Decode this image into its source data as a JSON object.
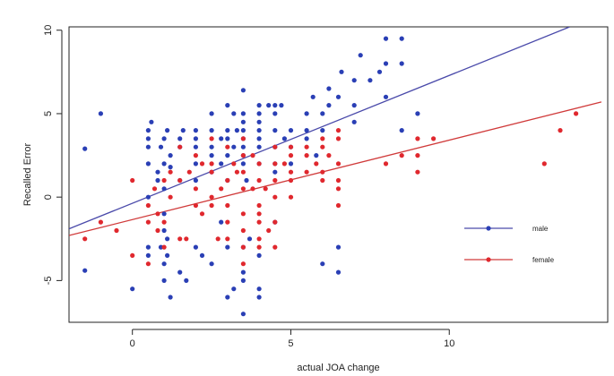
{
  "chart_data": {
    "type": "scatter",
    "title": "",
    "xlabel": "actual JOA change",
    "ylabel": "Recalled Error",
    "xlim": [
      -2,
      15
    ],
    "ylim": [
      -7.5,
      10.2
    ],
    "x_ticks": [
      "0",
      "5",
      "10"
    ],
    "x_tick_values": [
      0,
      5,
      10
    ],
    "y_ticks": [
      "-5",
      "0",
      "5",
      "10"
    ],
    "y_tick_values": [
      -5,
      0,
      5,
      10
    ],
    "grid": false,
    "legend": {
      "placement": "right-lower",
      "entries": [
        "male",
        "female"
      ]
    },
    "colors": {
      "male": "#2a3fb5",
      "female": "#e0282e",
      "male_line": "#4a4aaa",
      "female_line": "#d03a3a"
    },
    "series": [
      {
        "name": "male",
        "trendline": [
          [
            -2,
            -1.9
          ],
          [
            13.8,
            10.2
          ]
        ],
        "points": [
          [
            -1.5,
            2.9
          ],
          [
            -1.0,
            5.0
          ],
          [
            -1.5,
            -4.4
          ],
          [
            0.0,
            -5.5
          ],
          [
            0.5,
            0.0
          ],
          [
            0.5,
            -3.0
          ],
          [
            0.5,
            -3.5
          ],
          [
            0.5,
            2.0
          ],
          [
            0.5,
            3.0
          ],
          [
            0.5,
            3.5
          ],
          [
            0.5,
            4.0
          ],
          [
            0.6,
            4.5
          ],
          [
            0.8,
            1.0
          ],
          [
            0.8,
            1.5
          ],
          [
            0.9,
            -3.0
          ],
          [
            0.9,
            3.0
          ],
          [
            1.0,
            -1.0
          ],
          [
            1.0,
            -2.0
          ],
          [
            1.0,
            -4.0
          ],
          [
            1.0,
            -5.0
          ],
          [
            1.0,
            0.5
          ],
          [
            1.0,
            2.0
          ],
          [
            1.0,
            3.5
          ],
          [
            1.1,
            4.0
          ],
          [
            1.1,
            -2.5
          ],
          [
            1.1,
            -3.5
          ],
          [
            1.2,
            -6.0
          ],
          [
            1.2,
            1.8
          ],
          [
            1.2,
            2.5
          ],
          [
            1.5,
            3.0
          ],
          [
            1.5,
            3.5
          ],
          [
            1.5,
            1.0
          ],
          [
            1.5,
            -4.5
          ],
          [
            1.6,
            4.0
          ],
          [
            1.7,
            -5.0
          ],
          [
            2.0,
            2.0
          ],
          [
            2.0,
            3.0
          ],
          [
            2.0,
            4.0
          ],
          [
            2.0,
            3.5
          ],
          [
            2.0,
            1.0
          ],
          [
            2.0,
            -3.0
          ],
          [
            2.2,
            -3.5
          ],
          [
            2.5,
            4.0
          ],
          [
            2.5,
            3.0
          ],
          [
            2.5,
            5.0
          ],
          [
            2.5,
            2.5
          ],
          [
            2.5,
            1.5
          ],
          [
            2.5,
            -4.0
          ],
          [
            2.8,
            3.5
          ],
          [
            2.8,
            2.0
          ],
          [
            2.8,
            -1.5
          ],
          [
            3.0,
            4.0
          ],
          [
            3.0,
            5.5
          ],
          [
            3.0,
            3.5
          ],
          [
            3.0,
            2.5
          ],
          [
            3.0,
            1.0
          ],
          [
            3.0,
            -3.0
          ],
          [
            3.0,
            -6.0
          ],
          [
            3.2,
            3.0
          ],
          [
            3.2,
            5.0
          ],
          [
            3.2,
            -5.5
          ],
          [
            3.3,
            4.0
          ],
          [
            3.5,
            6.4
          ],
          [
            3.5,
            5.0
          ],
          [
            3.5,
            4.5
          ],
          [
            3.5,
            4.0
          ],
          [
            3.5,
            3.5
          ],
          [
            3.5,
            3.0
          ],
          [
            3.5,
            2.5
          ],
          [
            3.5,
            2.0
          ],
          [
            3.5,
            -3.0
          ],
          [
            3.5,
            -4.5
          ],
          [
            3.5,
            -5.0
          ],
          [
            3.5,
            -7.0
          ],
          [
            3.6,
            1.0
          ],
          [
            3.7,
            -2.5
          ],
          [
            4.0,
            5.5
          ],
          [
            4.0,
            5.0
          ],
          [
            4.0,
            4.5
          ],
          [
            4.0,
            4.0
          ],
          [
            4.0,
            3.5
          ],
          [
            4.0,
            3.0
          ],
          [
            4.0,
            2.0
          ],
          [
            4.0,
            -3.5
          ],
          [
            4.0,
            -5.5
          ],
          [
            4.0,
            -6.0
          ],
          [
            4.3,
            5.5
          ],
          [
            4.5,
            5.5
          ],
          [
            4.5,
            5.0
          ],
          [
            4.5,
            4.0
          ],
          [
            4.5,
            3.0
          ],
          [
            4.5,
            2.0
          ],
          [
            4.5,
            1.5
          ],
          [
            4.5,
            -1.5
          ],
          [
            4.7,
            5.5
          ],
          [
            4.8,
            3.5
          ],
          [
            5.0,
            4.0
          ],
          [
            5.0,
            3.0
          ],
          [
            5.0,
            2.0
          ],
          [
            5.5,
            5.0
          ],
          [
            5.5,
            3.5
          ],
          [
            5.5,
            4.0
          ],
          [
            5.7,
            6.0
          ],
          [
            5.8,
            2.5
          ],
          [
            6.0,
            5.0
          ],
          [
            6.0,
            4.0
          ],
          [
            6.0,
            -4.0
          ],
          [
            6.2,
            6.5
          ],
          [
            6.2,
            5.5
          ],
          [
            6.5,
            6.0
          ],
          [
            6.5,
            -3.0
          ],
          [
            6.5,
            -4.5
          ],
          [
            6.6,
            7.5
          ],
          [
            7.0,
            7.0
          ],
          [
            7.0,
            5.5
          ],
          [
            7.0,
            4.5
          ],
          [
            7.2,
            8.5
          ],
          [
            7.5,
            7.0
          ],
          [
            7.8,
            7.5
          ],
          [
            8.0,
            9.5
          ],
          [
            8.0,
            6.0
          ],
          [
            8.0,
            8.0
          ],
          [
            8.5,
            9.5
          ],
          [
            8.5,
            8.0
          ],
          [
            8.5,
            4.0
          ],
          [
            9.0,
            5.0
          ]
        ]
      },
      {
        "name": "female",
        "trendline": [
          [
            -2,
            -2.3
          ],
          [
            14.8,
            5.7
          ]
        ],
        "points": [
          [
            -1.5,
            -2.5
          ],
          [
            -1.0,
            -1.5
          ],
          [
            -0.5,
            -2.0
          ],
          [
            0.0,
            1.0
          ],
          [
            0.0,
            -3.5
          ],
          [
            0.5,
            -0.5
          ],
          [
            0.5,
            -1.5
          ],
          [
            0.5,
            -4.0
          ],
          [
            0.7,
            0.5
          ],
          [
            0.8,
            -1.0
          ],
          [
            0.8,
            -2.0
          ],
          [
            1.0,
            1.0
          ],
          [
            1.0,
            -1.5
          ],
          [
            1.0,
            -3.0
          ],
          [
            1.2,
            0.0
          ],
          [
            1.2,
            1.5
          ],
          [
            1.5,
            1.0
          ],
          [
            1.5,
            -2.5
          ],
          [
            1.5,
            3.0
          ],
          [
            1.7,
            -2.5
          ],
          [
            1.8,
            1.5
          ],
          [
            2.0,
            0.5
          ],
          [
            2.0,
            -0.5
          ],
          [
            2.0,
            2.5
          ],
          [
            2.2,
            2.0
          ],
          [
            2.2,
            -1.0
          ],
          [
            2.5,
            0.0
          ],
          [
            2.5,
            1.5
          ],
          [
            2.5,
            2.0
          ],
          [
            2.5,
            3.5
          ],
          [
            2.5,
            -0.5
          ],
          [
            2.7,
            -2.5
          ],
          [
            2.8,
            0.5
          ],
          [
            3.0,
            1.0
          ],
          [
            3.0,
            3.0
          ],
          [
            3.0,
            -0.5
          ],
          [
            3.0,
            -1.5
          ],
          [
            3.0,
            -2.5
          ],
          [
            3.2,
            2.0
          ],
          [
            3.3,
            1.5
          ],
          [
            3.5,
            0.5
          ],
          [
            3.5,
            1.5
          ],
          [
            3.5,
            2.5
          ],
          [
            3.5,
            3.5
          ],
          [
            3.5,
            -1.0
          ],
          [
            3.5,
            -2.0
          ],
          [
            3.5,
            -3.0
          ],
          [
            3.5,
            -4.0
          ],
          [
            3.8,
            0.5
          ],
          [
            3.8,
            2.5
          ],
          [
            4.0,
            1.0
          ],
          [
            4.0,
            2.0
          ],
          [
            4.0,
            -0.5
          ],
          [
            4.0,
            -1.0
          ],
          [
            4.0,
            -1.5
          ],
          [
            4.0,
            -2.5
          ],
          [
            4.0,
            -3.0
          ],
          [
            4.2,
            0.5
          ],
          [
            4.3,
            -2.0
          ],
          [
            4.5,
            3.0
          ],
          [
            4.5,
            2.0
          ],
          [
            4.5,
            1.0
          ],
          [
            4.5,
            0.0
          ],
          [
            4.5,
            -1.5
          ],
          [
            4.5,
            -3.0
          ],
          [
            4.8,
            2.0
          ],
          [
            5.0,
            2.5
          ],
          [
            5.0,
            1.5
          ],
          [
            5.0,
            1.0
          ],
          [
            5.0,
            0.0
          ],
          [
            5.0,
            3.0
          ],
          [
            5.5,
            2.5
          ],
          [
            5.5,
            1.5
          ],
          [
            5.5,
            3.0
          ],
          [
            5.8,
            2.0
          ],
          [
            6.0,
            3.5
          ],
          [
            6.0,
            3.0
          ],
          [
            6.0,
            1.5
          ],
          [
            6.0,
            1.0
          ],
          [
            6.2,
            2.5
          ],
          [
            6.5,
            4.0
          ],
          [
            6.5,
            3.5
          ],
          [
            6.5,
            2.0
          ],
          [
            6.5,
            0.5
          ],
          [
            6.5,
            1.0
          ],
          [
            6.5,
            -0.5
          ],
          [
            8.0,
            2.0
          ],
          [
            8.5,
            2.5
          ],
          [
            9.0,
            3.5
          ],
          [
            9.0,
            2.5
          ],
          [
            9.0,
            1.5
          ],
          [
            9.5,
            3.5
          ],
          [
            13.0,
            2.0
          ],
          [
            13.5,
            4.0
          ],
          [
            14.0,
            5.0
          ]
        ]
      }
    ]
  }
}
